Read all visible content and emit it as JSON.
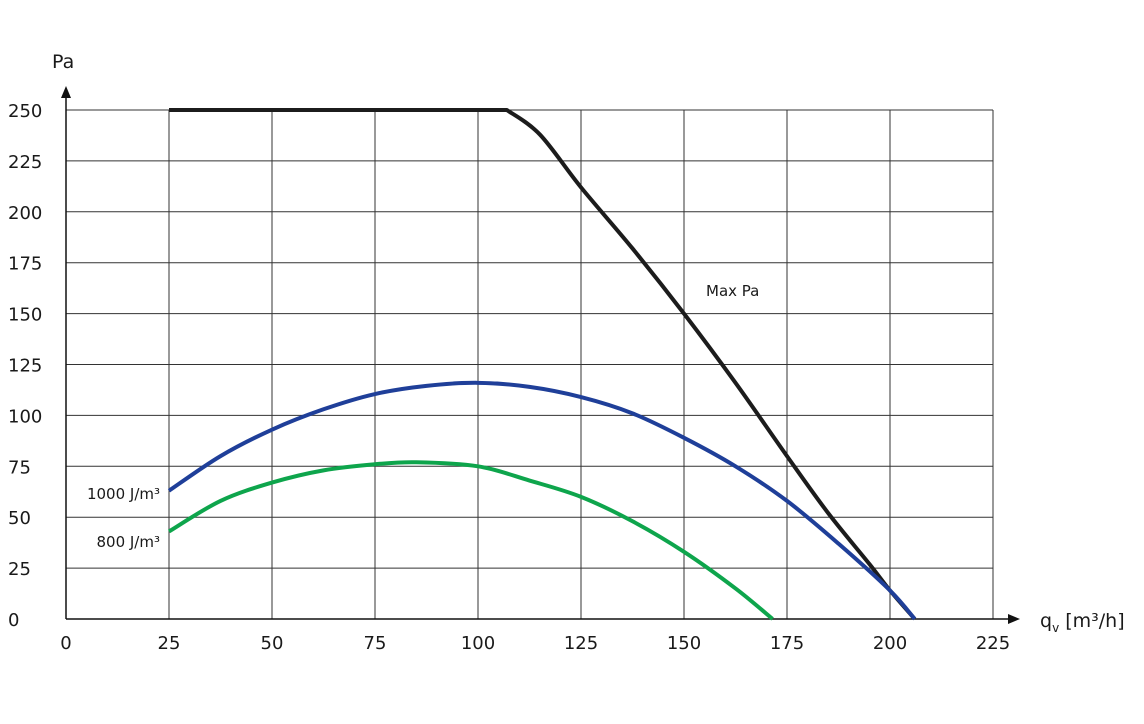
{
  "chart_data": {
    "type": "line",
    "ylabel": "Pa",
    "xlabel": {
      "prefix": "q",
      "subscript": "v",
      "rest": " [m³/h]"
    },
    "xlim": [
      0,
      225
    ],
    "ylim": [
      0,
      250
    ],
    "x_ticks": [
      "0",
      "25",
      "50",
      "75",
      "100",
      "125",
      "150",
      "175",
      "200",
      "225"
    ],
    "y_ticks": [
      "0",
      "25",
      "50",
      "75",
      "100",
      "125",
      "150",
      "175",
      "200",
      "225",
      "250"
    ],
    "grid": true,
    "series": [
      {
        "name": "Max Pa",
        "color": "#1c1c1c",
        "x": [
          25,
          107,
          115,
          125,
          137.5,
          150,
          162.5,
          175,
          185,
          195,
          200,
          206
        ],
        "y": [
          250,
          250,
          238,
          212,
          182,
          150,
          116,
          80,
          52,
          27,
          14,
          0
        ]
      },
      {
        "name": "1000 J/m³",
        "color": "#1f3f99",
        "x": [
          25,
          37.5,
          50,
          62.5,
          75,
          87.5,
          100,
          112.5,
          125,
          137.5,
          150,
          162.5,
          175,
          187.5,
          200,
          206
        ],
        "y": [
          63,
          80,
          93,
          103,
          110.5,
          114.5,
          116,
          114,
          109,
          101,
          89,
          75,
          58,
          37,
          14,
          0
        ]
      },
      {
        "name": "800 J/m³",
        "color": "#0ea54c",
        "x": [
          25,
          37.5,
          50,
          62.5,
          75,
          85,
          100,
          112.5,
          125,
          137.5,
          150,
          162.5,
          171.5
        ],
        "y": [
          43,
          58,
          67,
          73,
          76,
          77,
          75,
          68,
          60,
          48,
          33,
          15,
          0
        ]
      }
    ]
  }
}
